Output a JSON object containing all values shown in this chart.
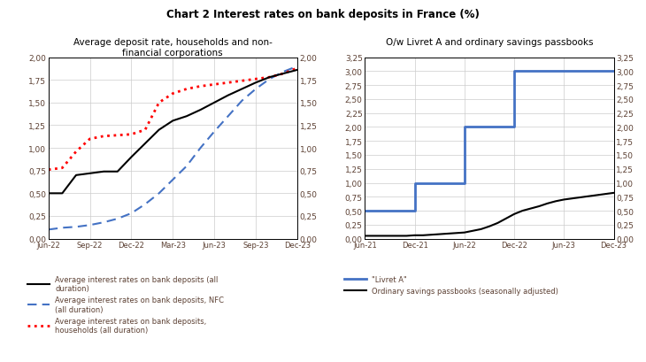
{
  "title": "Chart 2 Interest rates on bank deposits in France (%)",
  "left_subtitle": "Average deposit rate, households and non-\nfinancial corporations",
  "right_subtitle": "O/w Livret A and ordinary savings passbooks",
  "left": {
    "x_labels": [
      "Jun-22",
      "Sep-22",
      "Dec-22",
      "Mar-23",
      "Jun-23",
      "Sep-23",
      "Dec-23"
    ],
    "x_numeric": [
      0,
      3,
      6,
      9,
      12,
      15,
      18
    ],
    "ylim": [
      0.0,
      2.0
    ],
    "yticks": [
      0.0,
      0.25,
      0.5,
      0.75,
      1.0,
      1.25,
      1.5,
      1.75,
      2.0
    ],
    "series_all": {
      "x": [
        0,
        1,
        2,
        3,
        4,
        5,
        6,
        7,
        8,
        9,
        10,
        11,
        12,
        13,
        14,
        15,
        16,
        17,
        18
      ],
      "y": [
        0.5,
        0.5,
        0.7,
        0.72,
        0.74,
        0.74,
        0.9,
        1.05,
        1.2,
        1.3,
        1.35,
        1.42,
        1.5,
        1.58,
        1.65,
        1.72,
        1.78,
        1.82,
        1.86
      ],
      "color": "#000000",
      "linestyle": "solid",
      "linewidth": 1.5,
      "label": "Average interest rates on bank deposits (all\nduration)"
    },
    "series_nfc": {
      "x": [
        0,
        1,
        2,
        3,
        4,
        5,
        6,
        7,
        8,
        9,
        10,
        11,
        12,
        13,
        14,
        15,
        16,
        17,
        18
      ],
      "y": [
        0.1,
        0.12,
        0.13,
        0.15,
        0.18,
        0.22,
        0.28,
        0.38,
        0.5,
        0.65,
        0.8,
        1.0,
        1.18,
        1.35,
        1.52,
        1.65,
        1.76,
        1.84,
        1.9
      ],
      "color": "#4472C4",
      "linestyle": "dashed",
      "linewidth": 1.5,
      "label": "Average interest rates on bank deposits, NFC\n(all duration)"
    },
    "series_hh": {
      "x": [
        0,
        1,
        2,
        3,
        4,
        5,
        6,
        7,
        8,
        9,
        10,
        11,
        12,
        13,
        14,
        15,
        16,
        17,
        18
      ],
      "y": [
        0.76,
        0.78,
        0.96,
        1.1,
        1.13,
        1.14,
        1.15,
        1.2,
        1.5,
        1.6,
        1.65,
        1.68,
        1.7,
        1.72,
        1.74,
        1.76,
        1.78,
        1.82,
        1.88
      ],
      "color": "#FF0000",
      "linestyle": "dotted",
      "linewidth": 2.0,
      "label": "Average interest rates on bank deposits,\nhouseholds (all duration)"
    }
  },
  "right": {
    "x_labels": [
      "Jun-21",
      "Dec-21",
      "Jun-22",
      "Dec-22",
      "Jun-23",
      "Dec-23"
    ],
    "x_numeric": [
      0,
      6,
      12,
      18,
      24,
      30
    ],
    "ylim": [
      0.0,
      3.25
    ],
    "yticks": [
      0.0,
      0.25,
      0.5,
      0.75,
      1.0,
      1.25,
      1.5,
      1.75,
      2.0,
      2.25,
      2.5,
      2.75,
      3.0,
      3.25
    ],
    "series_livret": {
      "x": [
        0,
        6,
        6,
        12,
        12,
        18,
        18,
        24,
        30
      ],
      "y": [
        0.5,
        0.5,
        1.0,
        1.0,
        2.0,
        2.0,
        3.0,
        3.0,
        3.0
      ],
      "color": "#4472C4",
      "linestyle": "solid",
      "linewidth": 2.0,
      "label": "\"Livret A\""
    },
    "series_savings": {
      "x": [
        0,
        1,
        2,
        3,
        4,
        5,
        6,
        7,
        8,
        9,
        10,
        11,
        12,
        13,
        14,
        15,
        16,
        17,
        18,
        19,
        20,
        21,
        22,
        23,
        24,
        25,
        26,
        27,
        28,
        29,
        30
      ],
      "y": [
        0.05,
        0.05,
        0.05,
        0.05,
        0.05,
        0.05,
        0.06,
        0.06,
        0.07,
        0.08,
        0.09,
        0.1,
        0.11,
        0.14,
        0.17,
        0.22,
        0.28,
        0.36,
        0.44,
        0.5,
        0.54,
        0.58,
        0.63,
        0.67,
        0.7,
        0.72,
        0.74,
        0.76,
        0.78,
        0.8,
        0.82
      ],
      "color": "#000000",
      "linestyle": "solid",
      "linewidth": 1.5,
      "label": "Ordinary savings passbooks (seasonally adjusted)"
    }
  },
  "grid_color": "#cccccc",
  "tick_color": "#5c4033",
  "label_color": "#5c4033",
  "background_color": "#ffffff"
}
